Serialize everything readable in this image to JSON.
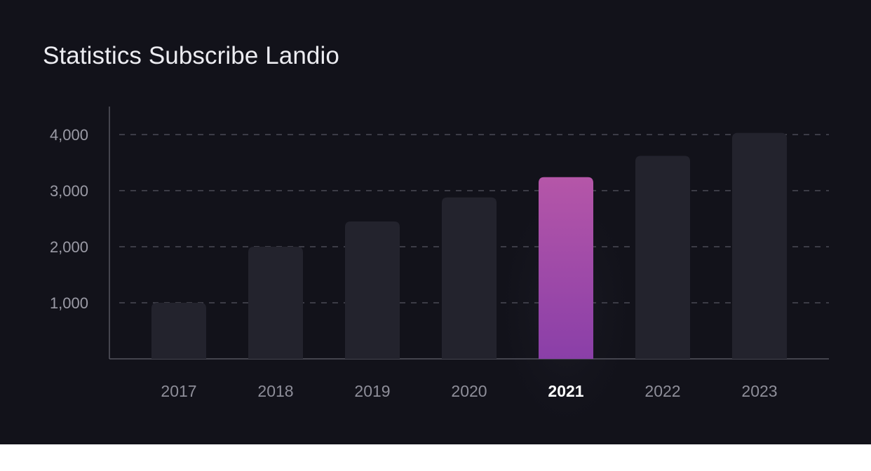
{
  "chart_data": {
    "type": "bar",
    "title": "Statistics Subscribe Landio",
    "xlabel": "",
    "ylabel": "",
    "categories": [
      "2017",
      "2018",
      "2019",
      "2020",
      "2021",
      "2022",
      "2023"
    ],
    "values": [
      1000,
      2000,
      2450,
      2880,
      3240,
      3620,
      4030
    ],
    "highlighted_category": "2021",
    "ylim": [
      0,
      4500
    ],
    "yticks": [
      1000,
      2000,
      3000,
      4000
    ],
    "ytick_labels": [
      "1,000",
      "2,000",
      "3,000",
      "4,000"
    ],
    "grid": true,
    "legend": "none",
    "colors": {
      "background": "#12121a",
      "bar": "#23232d",
      "highlight_top": "#b556a8",
      "highlight_bottom": "#8a3fa8",
      "grid": "#4a4a55",
      "axis": "#54545f"
    }
  }
}
